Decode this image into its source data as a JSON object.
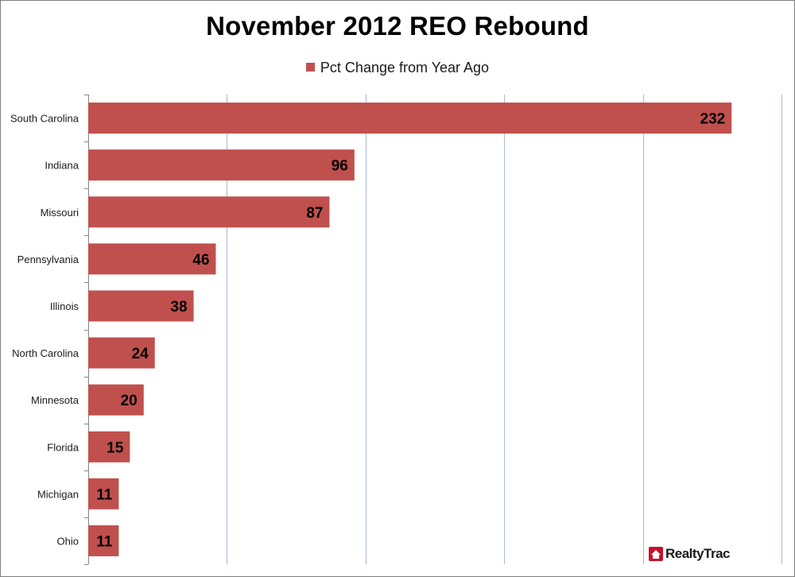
{
  "colors": {
    "bar": "#c0504d",
    "gridline": "#a6b9d6",
    "axis": "#868686",
    "label_text": "#000000",
    "logo_red": "#c8102e"
  },
  "logo": {
    "text": "RealtyTrac",
    "icon": "house-icon"
  },
  "chart_data": {
    "type": "bar",
    "orientation": "horizontal",
    "title": "November 2012 REO Rebound",
    "legend_position": "top",
    "grid": true,
    "xlim": [
      0,
      250
    ],
    "x_gridline_step": 50,
    "categories": [
      "South Carolina",
      "Indiana",
      "Missouri",
      "Pennsylvania",
      "Illinois",
      "North Carolina",
      "Minnesota",
      "Florida",
      "Michigan",
      "Ohio"
    ],
    "series": [
      {
        "name": "Pct Change from Year Ago",
        "values": [
          232,
          96,
          87,
          46,
          38,
          24,
          20,
          15,
          11,
          11
        ]
      }
    ],
    "data_labels": [
      "232",
      "96",
      "87",
      "46",
      "38",
      "24",
      "20",
      "15",
      "11",
      "11"
    ]
  }
}
